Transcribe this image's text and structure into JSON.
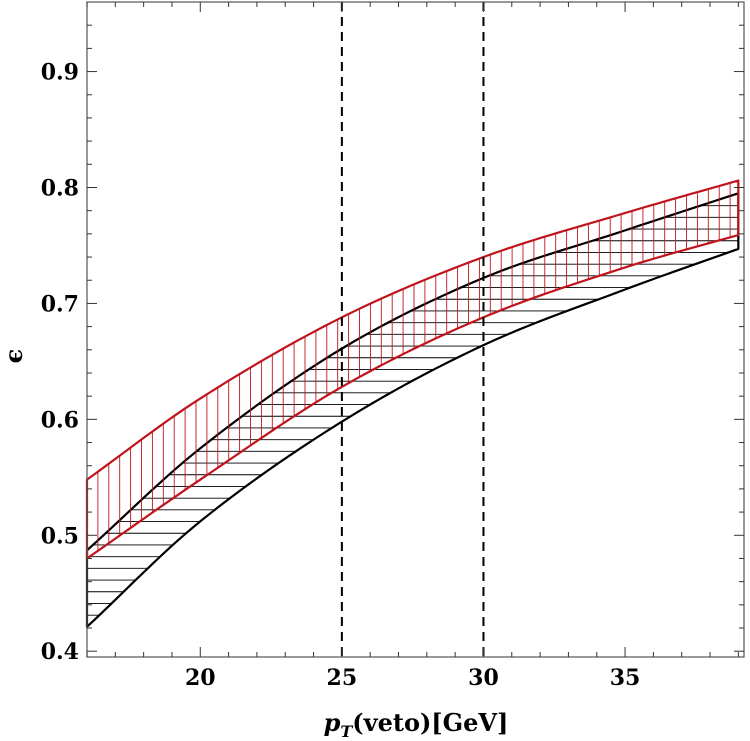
{
  "chart_data": {
    "type": "area",
    "xlabel_main": "p",
    "xlabel_sub": "T",
    "xlabel_rest": "(veto)[GeV]",
    "ylabel": "ϵ",
    "xlim": [
      16,
      39.2
    ],
    "ylim": [
      0.395,
      0.96
    ],
    "xticks": [
      20,
      25,
      30,
      35
    ],
    "xtick_labels": [
      "20",
      "25",
      "30",
      "35"
    ],
    "yticks": [
      0.4,
      0.5,
      0.6,
      0.7,
      0.8,
      0.9
    ],
    "ytick_labels": [
      "0.4",
      "0.5",
      "0.6",
      "0.7",
      "0.8",
      "0.9"
    ],
    "vlines": [
      25,
      30
    ],
    "grid": false,
    "series": [
      {
        "color": "#000000",
        "hatch": "horizontal",
        "x": [
          16,
          20,
          25,
          30,
          35,
          39
        ],
        "upper": [
          0.487,
          0.575,
          0.661,
          0.722,
          0.763,
          0.795
        ],
        "lower": [
          0.421,
          0.512,
          0.598,
          0.664,
          0.712,
          0.747
        ]
      },
      {
        "color": "#c0141c",
        "hatch": "vertical",
        "x": [
          16,
          20,
          25,
          30,
          35,
          39
        ],
        "upper": [
          0.548,
          0.618,
          0.688,
          0.74,
          0.778,
          0.806
        ],
        "lower": [
          0.48,
          0.548,
          0.628,
          0.688,
          0.731,
          0.759
        ]
      }
    ]
  }
}
